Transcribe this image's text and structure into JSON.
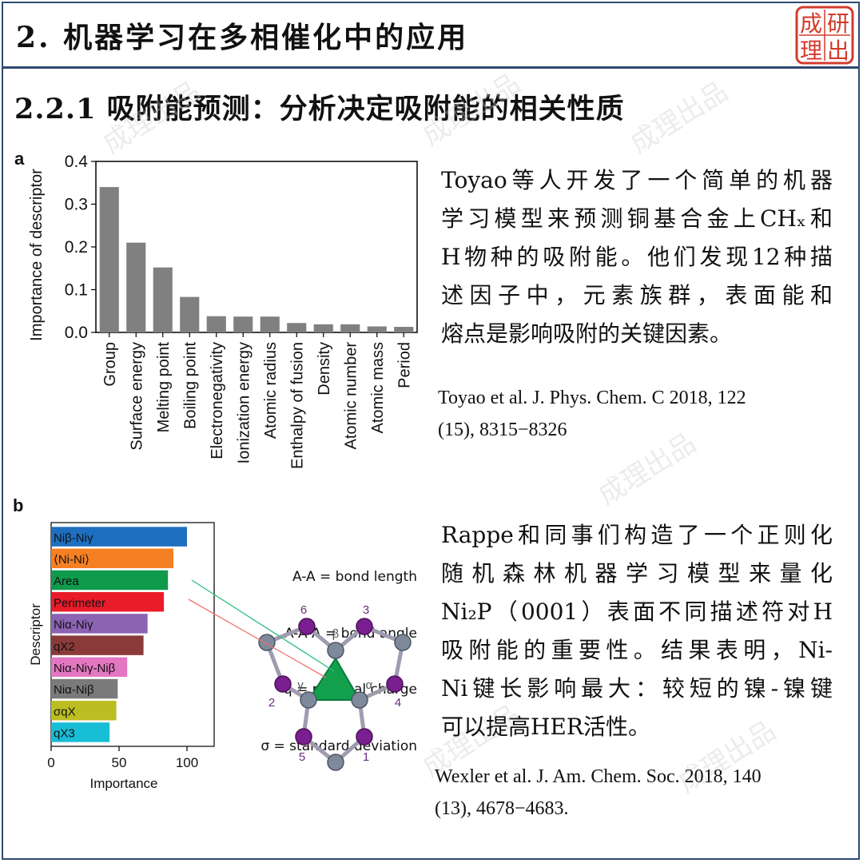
{
  "header": {
    "title": "2. 机器学习在多相催化中的应用"
  },
  "seal": {
    "chars": [
      "成",
      "研",
      "理",
      "出"
    ]
  },
  "subtitle": "2.2.1 吸附能预测：分析决定吸附能的相关性质",
  "watermark": "成理出品",
  "panel_a": {
    "letter": "a"
  },
  "panel_b": {
    "letter": "b"
  },
  "chart_data": [
    {
      "type": "bar",
      "ylabel": "Importance of descriptor",
      "ylim": [
        0,
        0.4
      ],
      "yticks": [
        "0.0",
        "0.1",
        "0.2",
        "0.3",
        "0.4"
      ],
      "categories": [
        "Group",
        "Surface energy",
        "Melting point",
        "Boiling point",
        "Electronegativity",
        "Ionization energy",
        "Atomic radius",
        "Enthalpy of fusion",
        "Density",
        "Atomic number",
        "Atomic mass",
        "Period"
      ],
      "values": [
        0.34,
        0.21,
        0.152,
        0.083,
        0.038,
        0.037,
        0.037,
        0.022,
        0.019,
        0.019,
        0.014,
        0.013
      ],
      "bar_color": "#808080"
    },
    {
      "type": "bar",
      "orientation": "horizontal",
      "ylabel": "Descriptor",
      "xlabel": "Importance",
      "xlim": [
        0,
        100
      ],
      "xticks": [
        "0",
        "50",
        "100"
      ],
      "categories": [
        "Niβ-Niγ",
        "⟨Ni-Ni⟩",
        "Area",
        "Perimeter",
        "Niα-Niγ",
        "qX2",
        "Niα-Niγ-Niβ",
        "Niα-Niβ",
        "σqX",
        "qX3"
      ],
      "values": [
        100,
        90,
        86,
        83,
        71,
        68,
        56,
        49,
        48,
        43
      ],
      "colors": [
        "#1f6fc0",
        "#f58023",
        "#0f9a4c",
        "#ea1c2a",
        "#8c63b3",
        "#8b3a3a",
        "#e377c2",
        "#7a7a7a",
        "#bcbd22",
        "#18bdd6"
      ]
    }
  ],
  "diagram": {
    "legend": [
      "A-A = bond length",
      "A-A-A = bond angle",
      "q = residual charge",
      "σ = standard deviation"
    ],
    "labels": {
      "beta": "β",
      "gamma": "γ",
      "alpha": "α",
      "n1": "1",
      "n2": "2",
      "n3": "3",
      "n4": "4",
      "n5": "5",
      "n6": "6"
    }
  },
  "text1": {
    "lines": [
      "Toyao等人开发了一个简单的机器",
      "学习模型来预测铜基合金上CHₓ和",
      "H物种的吸附能。他们发现12种描",
      "述因子中，元素族群，表面能和",
      "熔点是影响吸附的关键因素。"
    ]
  },
  "ref1": [
    "Toyao et al.  J. Phys. Chem. C 2018, 122",
    "(15), 8315−8326"
  ],
  "text2": {
    "lines": [
      "Rappe和同事们构造了一个正则化",
      "随机森林机器学习模型来量化",
      "Ni₂P（0001）表面不同描述符对H",
      "吸附能的重要性。结果表明，Ni-",
      "Ni键长影响最大：较短的镍-镍键",
      "可以提高HER活性。"
    ]
  },
  "ref2": [
    "Wexler et al. J. Am. Chem. Soc. 2018, 140",
    "(13), 4678−4683."
  ]
}
